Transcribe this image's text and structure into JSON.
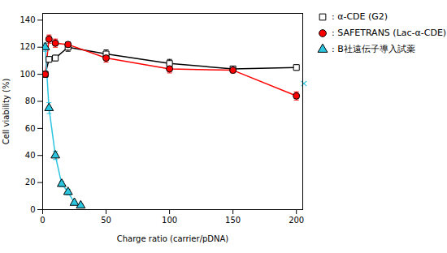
{
  "chart_data": {
    "type": "line",
    "xlabel": "Charge ratio (carrier/pDNA)",
    "ylabel": "Cell viability (%)",
    "xlim": [
      0,
      205
    ],
    "ylim": [
      0,
      145
    ],
    "xticks": [
      0,
      50,
      100,
      150,
      200
    ],
    "yticks": [
      0,
      20,
      40,
      60,
      80,
      100,
      120,
      140
    ],
    "legend": "upper right",
    "series": [
      {
        "name": ": α-CDE (G2)",
        "color": "black",
        "marker": "open_square",
        "line_style": "solid",
        "x": [
          2,
          5,
          10,
          20,
          50,
          100,
          150,
          200
        ],
        "values": [
          100,
          111,
          112,
          120,
          115,
          108,
          104,
          105
        ],
        "errors": [
          2,
          2,
          2,
          3,
          3,
          3,
          2,
          2
        ]
      },
      {
        "name": ": SAFETRANS (Lac-α-CDE)",
        "color": "red",
        "marker": "circle",
        "line_style": "solid",
        "x": [
          2,
          5,
          10,
          20,
          50,
          100,
          150,
          200
        ],
        "values": [
          100,
          126,
          123,
          122,
          112,
          104,
          103,
          84
        ],
        "errors": [
          2,
          3,
          3,
          2,
          3,
          3,
          2,
          3
        ]
      },
      {
        "name": ": B社遠伝子導入試薬",
        "color": "#2bc5e0",
        "marker": "triangle",
        "line_style": "solid",
        "x": [
          2,
          5,
          10,
          15,
          20,
          25,
          30
        ],
        "values": [
          120,
          75,
          40,
          19,
          13,
          5,
          3
        ],
        "errors": [
          3,
          4,
          3,
          2,
          2,
          1,
          1
        ]
      }
    ],
    "annotations": [
      {
        "text": "×",
        "x": 201,
        "y": 93,
        "color": "#2bc5e0"
      }
    ]
  }
}
